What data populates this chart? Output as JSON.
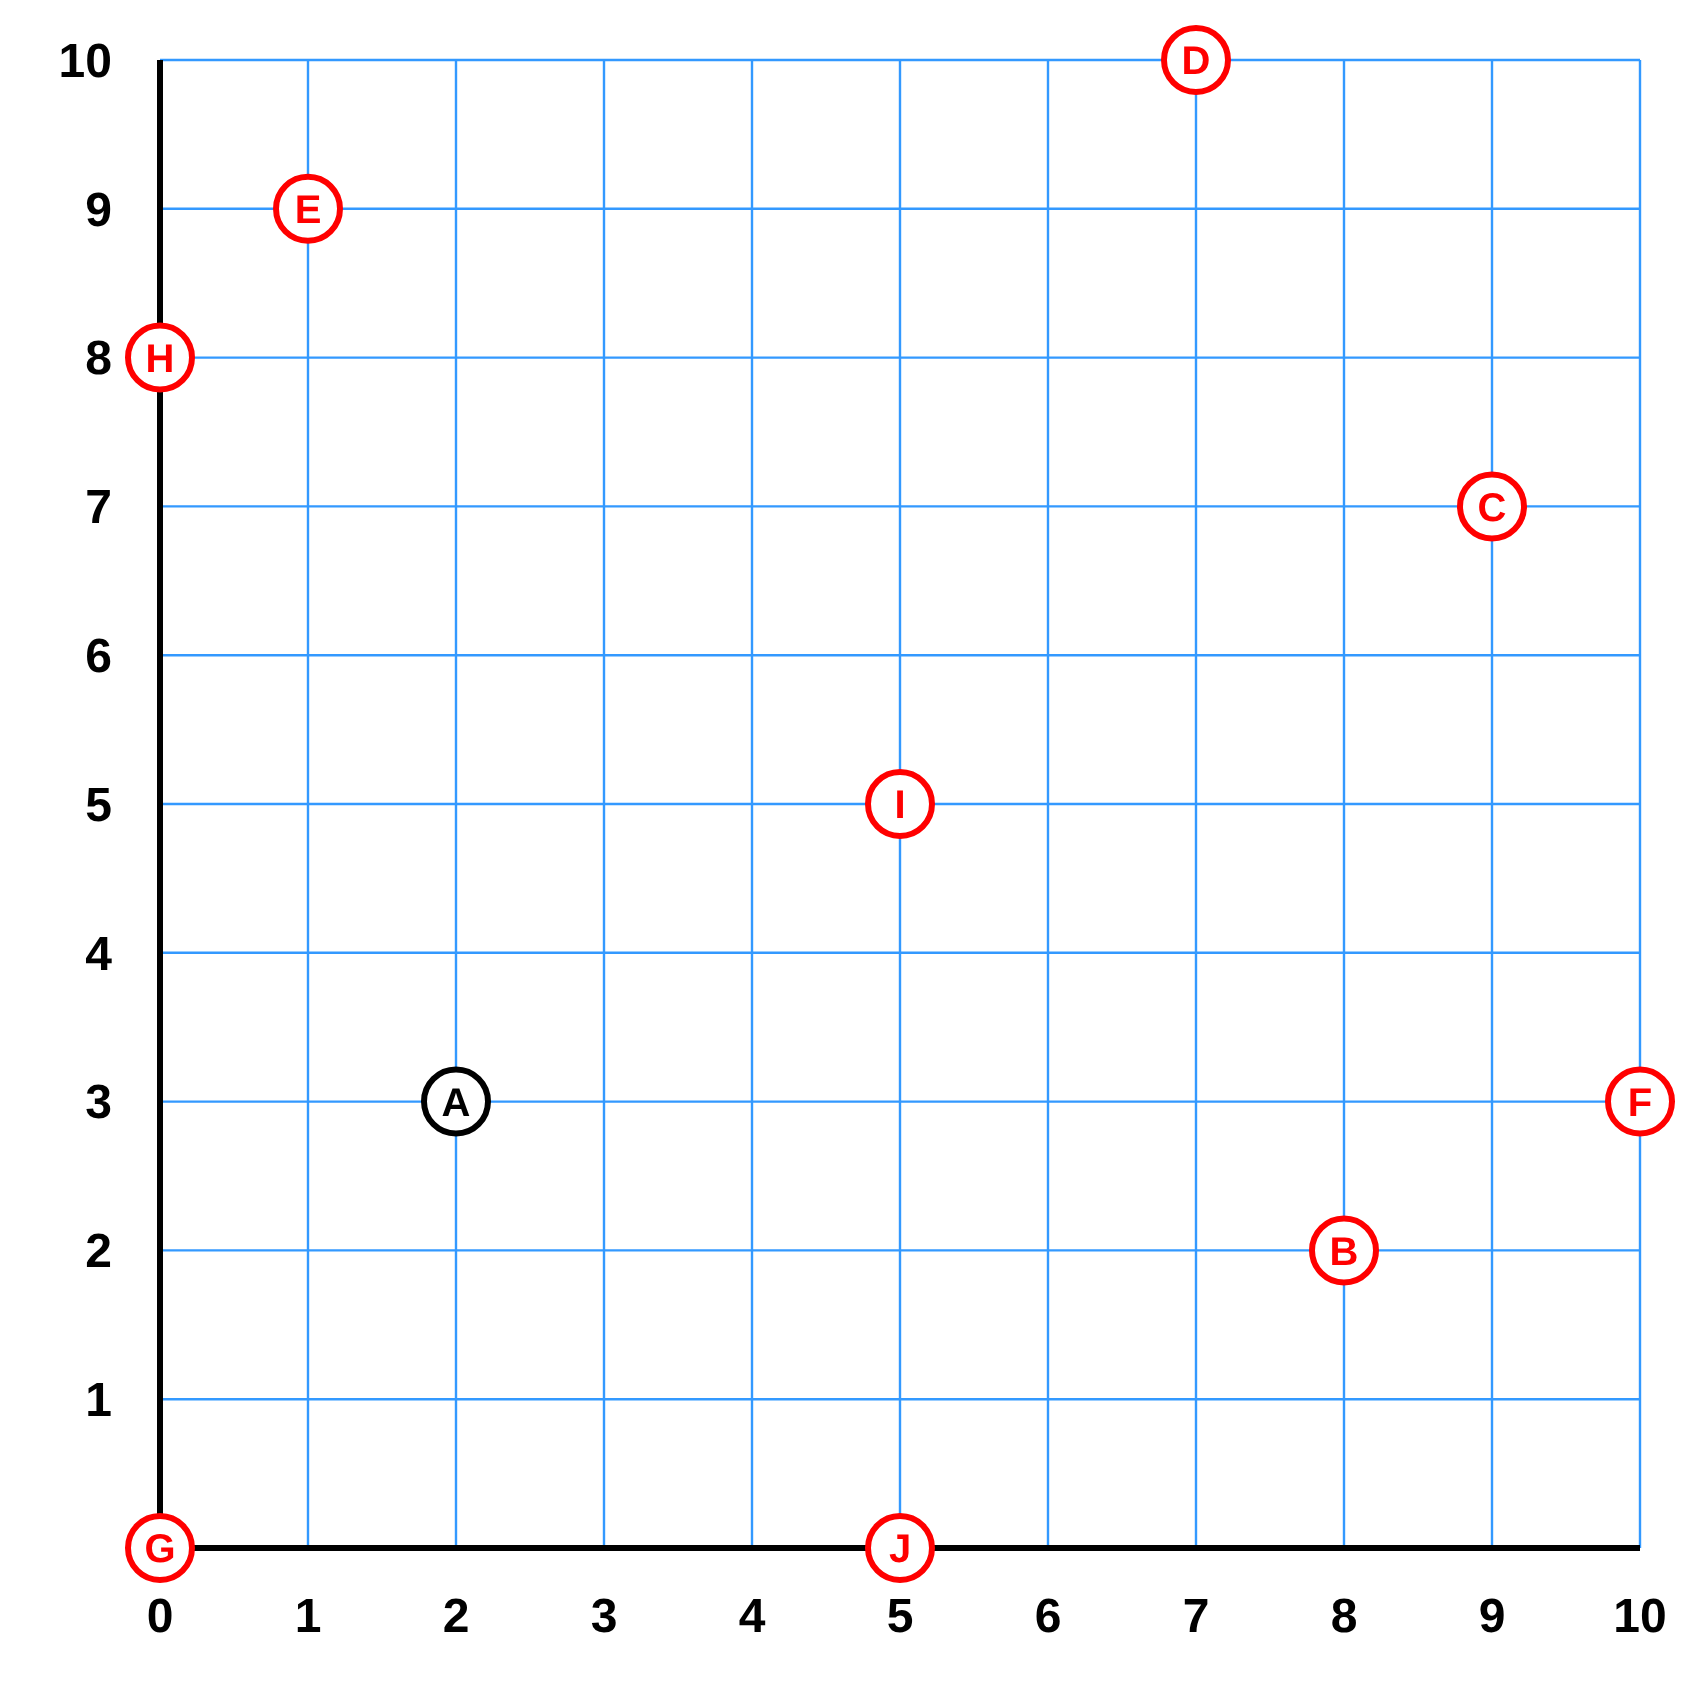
{
  "chart_data": {
    "type": "scatter",
    "x": [
      2,
      8,
      9,
      7,
      1,
      10,
      0,
      0,
      5,
      5
    ],
    "values": [
      3,
      2,
      7,
      10,
      9,
      3,
      0,
      8,
      5,
      0
    ],
    "colors": [
      "#000000",
      "#ff0000",
      "#ff0000",
      "#ff0000",
      "#ff0000",
      "#ff0000",
      "#ff0000",
      "#ff0000",
      "#ff0000",
      "#ff0000"
    ],
    "marker": "circle",
    "xlim": [
      0,
      10
    ],
    "ylim": [
      0,
      10
    ],
    "xticks": [
      0,
      1,
      2,
      3,
      4,
      5,
      6,
      7,
      8,
      9,
      10
    ],
    "yticks": [
      {
        "value": 0,
        "label": null
      },
      1,
      2,
      3,
      4,
      5,
      6,
      7,
      8,
      9,
      10
    ],
    "grid": true,
    "annotations": [
      {
        "text": "A",
        "x": 2,
        "y": 3
      },
      {
        "text": "B",
        "x": 8,
        "y": 2
      },
      {
        "text": "C",
        "x": 9,
        "y": 7
      },
      {
        "text": "D",
        "x": 7,
        "y": 10
      },
      {
        "text": "E",
        "x": 1,
        "y": 9
      },
      {
        "text": "F",
        "x": 10,
        "y": 3
      },
      {
        "text": "G",
        "x": 0,
        "y": 0
      },
      {
        "text": "H",
        "x": 0,
        "y": 8
      },
      {
        "text": "I",
        "x": 5,
        "y": 5
      },
      {
        "text": "J",
        "x": 5,
        "y": 0
      }
    ]
  }
}
